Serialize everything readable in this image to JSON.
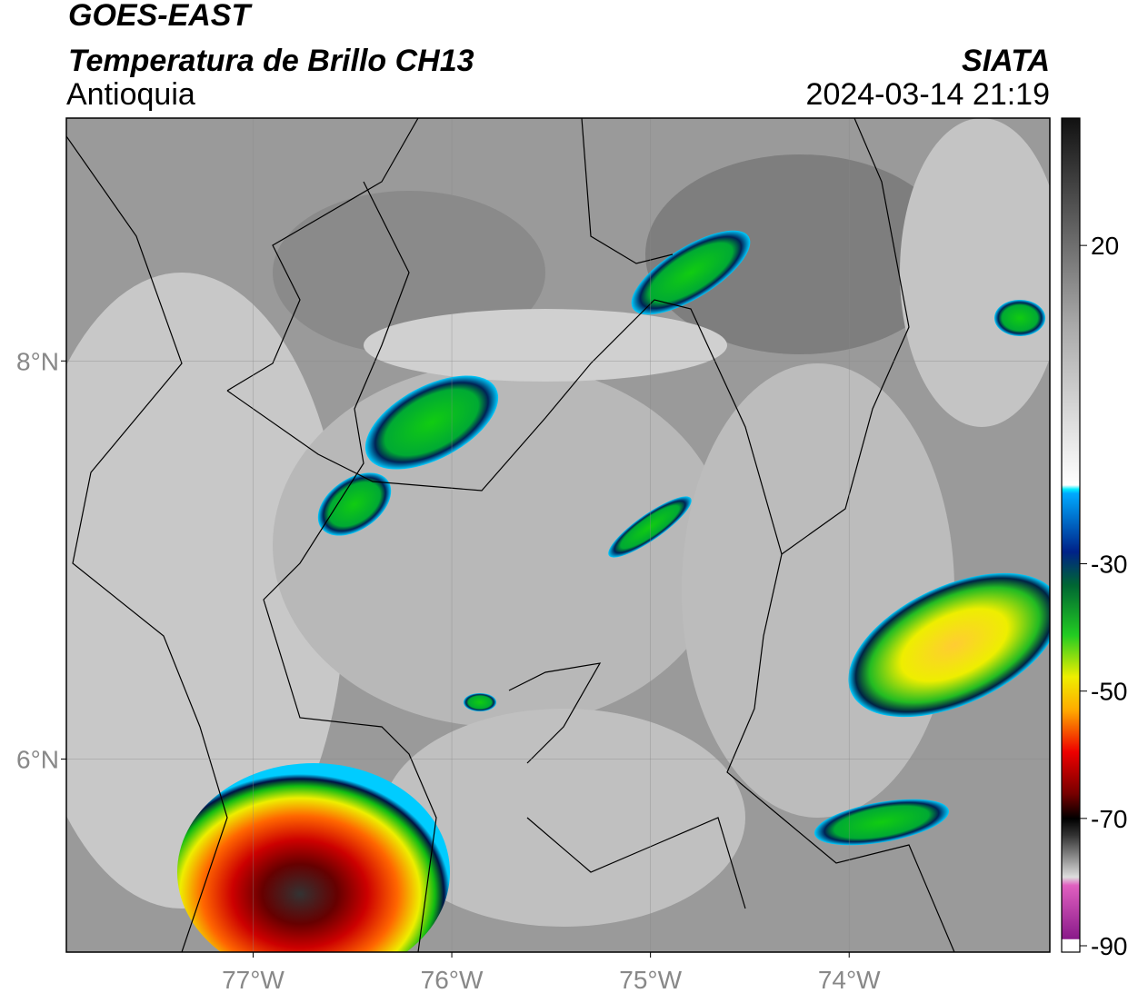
{
  "title": "GOES-EAST",
  "subtitle": "Temperatura de Brillo CH13",
  "region": "Antioquia",
  "source": "SIATA",
  "datetime": "2024-03-14 21:19",
  "map": {
    "xlim": [
      -77.94,
      -72.99
    ],
    "ylim": [
      5.03,
      9.22
    ],
    "xticks": [
      {
        "value": -77,
        "label": "77°W"
      },
      {
        "value": -76,
        "label": "76°W"
      },
      {
        "value": -75,
        "label": "75°W"
      },
      {
        "value": -74,
        "label": "74°W"
      }
    ],
    "yticks": [
      {
        "value": 6,
        "label": "6°N"
      },
      {
        "value": 8,
        "label": "8°N"
      }
    ],
    "grid": true
  },
  "colorbar": {
    "lim": [
      -91,
      40
    ],
    "ticks": [
      20,
      -30,
      -50,
      -70,
      -90
    ]
  }
}
